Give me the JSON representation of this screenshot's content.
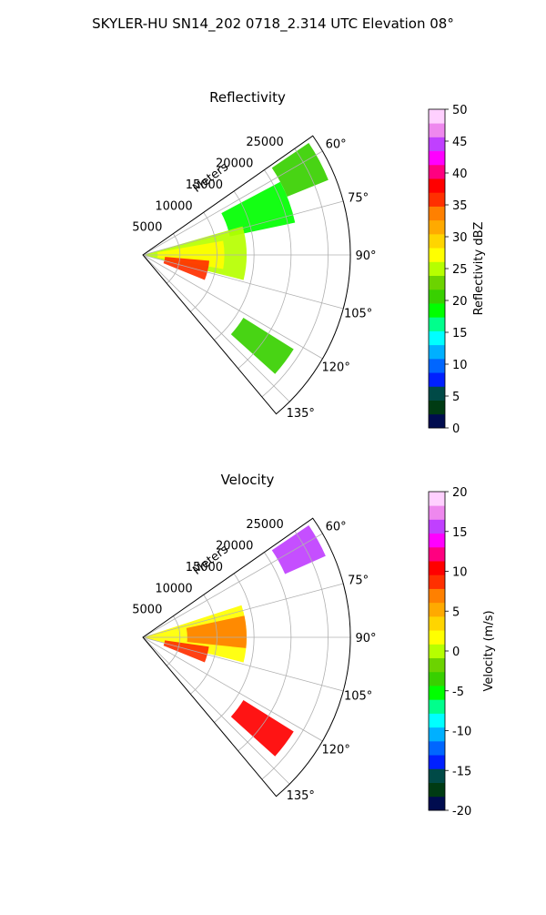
{
  "figure": {
    "title": "SKYLER-HU  SN14_202  0718_2.314 UTC Elevation 08°"
  },
  "chart_data": [
    {
      "type": "polar_sector",
      "title": "Reflectivity",
      "theta_range_deg": [
        55,
        140
      ],
      "theta_zero": "north",
      "theta_direction": "clockwise",
      "theta_ticks": [
        "60°",
        "75°",
        "90°",
        "105°",
        "120°",
        "135°"
      ],
      "r_label": "Meters",
      "r_max": 28000,
      "r_ticks": [
        "5000",
        "10000",
        "15000",
        "20000",
        "25000"
      ],
      "colorbar": {
        "label": "Reflectivity dBZ",
        "min": 0,
        "max": 50,
        "ticks": [
          "0",
          "5",
          "10",
          "15",
          "20",
          "25",
          "30",
          "35",
          "40",
          "45",
          "50"
        ]
      },
      "regions": [
        {
          "theta_deg": [
            56,
            68
          ],
          "r_m": [
            21000,
            27000
          ],
          "value_dbz": 20
        },
        {
          "theta_deg": [
            62,
            78
          ],
          "r_m": [
            12000,
            21000
          ],
          "value_dbz": 18
        },
        {
          "theta_deg": [
            74,
            104
          ],
          "r_m": [
            0,
            14000
          ],
          "value_dbz": 24
        },
        {
          "theta_deg": [
            80,
            100
          ],
          "r_m": [
            2000,
            11000
          ],
          "value_dbz": 28
        },
        {
          "theta_deg": [
            95,
            112
          ],
          "r_m": [
            3000,
            9000
          ],
          "value_dbz": 36
        },
        {
          "theta_deg": [
            122,
            132
          ],
          "r_m": [
            16000,
            24000
          ],
          "value_dbz": 20
        }
      ]
    },
    {
      "type": "polar_sector",
      "title": "Velocity",
      "theta_range_deg": [
        55,
        140
      ],
      "theta_zero": "north",
      "theta_direction": "clockwise",
      "theta_ticks": [
        "60°",
        "75°",
        "90°",
        "105°",
        "120°",
        "135°"
      ],
      "r_label": "Meters",
      "r_max": 28000,
      "r_ticks": [
        "5000",
        "10000",
        "15000",
        "20000",
        "25000"
      ],
      "colorbar": {
        "label": "Velocity (m/s)",
        "min": -20,
        "max": 20,
        "ticks": [
          "-20",
          "-15",
          "-10",
          "-5",
          "0",
          "5",
          "10",
          "15",
          "20"
        ]
      },
      "regions": [
        {
          "theta_deg": [
            56,
            66
          ],
          "r_m": [
            21000,
            27000
          ],
          "value_ms": 16
        },
        {
          "theta_deg": [
            72,
            104
          ],
          "r_m": [
            0,
            14000
          ],
          "value_ms": 2
        },
        {
          "theta_deg": [
            78,
            96
          ],
          "r_m": [
            6000,
            14000
          ],
          "value_ms": 7
        },
        {
          "theta_deg": [
            98,
            112
          ],
          "r_m": [
            3000,
            9000
          ],
          "value_ms": 8
        },
        {
          "theta_deg": [
            122,
            132
          ],
          "r_m": [
            16000,
            24000
          ],
          "value_ms": 11
        }
      ]
    }
  ],
  "colors": {
    "grid": "#b0b0b0",
    "refl_scale": [
      "#000c4f",
      "#003b13",
      "#004a47",
      "#0020ff",
      "#0066ff",
      "#00b0ff",
      "#00ffff",
      "#00ff8c",
      "#00ff00",
      "#38d000",
      "#6cd300",
      "#b6ff00",
      "#ffff00",
      "#ffd500",
      "#ffaa00",
      "#ff8000",
      "#ff3000",
      "#ff0000",
      "#ff0080",
      "#ff00ff",
      "#c040ff",
      "#ee88ee",
      "#ffd0ff"
    ],
    "vel_scale": [
      "#000c4f",
      "#003b13",
      "#004a47",
      "#0020ff",
      "#0066ff",
      "#00b0ff",
      "#00ffff",
      "#00ff8c",
      "#00ff00",
      "#38d000",
      "#6cd300",
      "#b6ff00",
      "#ffff00",
      "#ffd500",
      "#ffaa00",
      "#ff8000",
      "#ff3000",
      "#ff0000",
      "#ff0080",
      "#ff00ff",
      "#c040ff",
      "#ee88ee",
      "#ffd0ff"
    ]
  }
}
